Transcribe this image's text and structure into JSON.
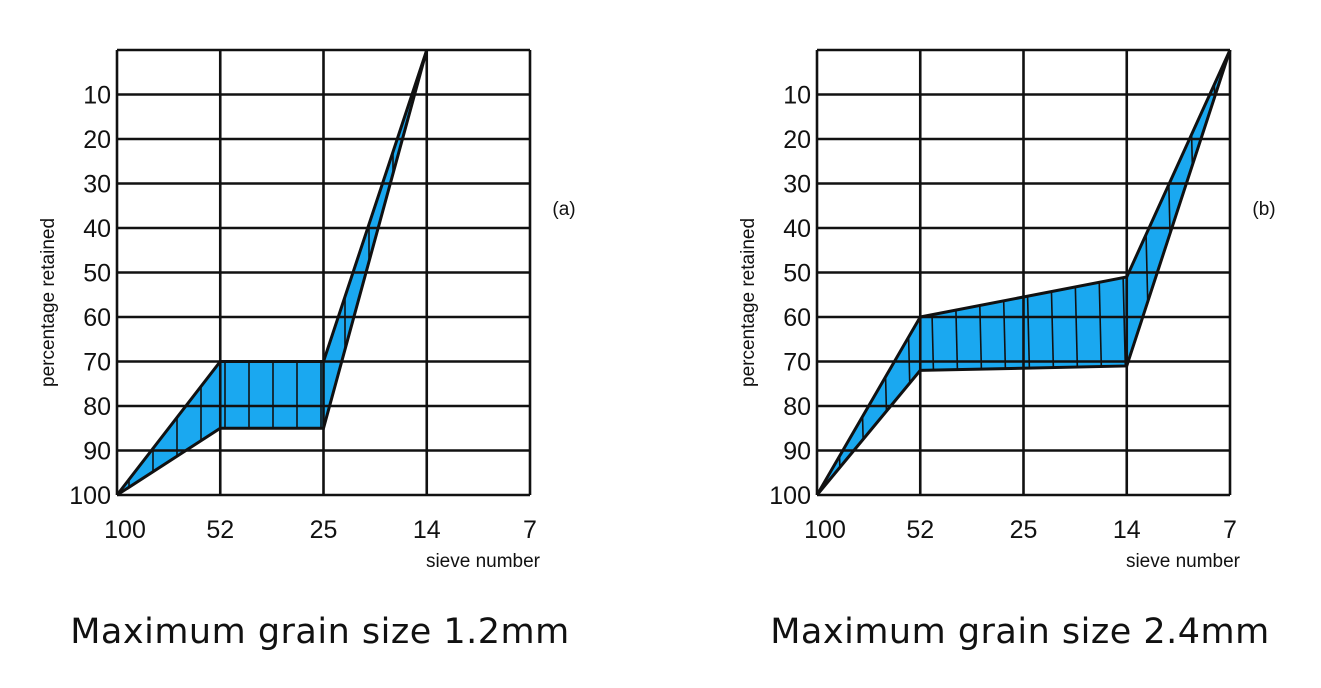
{
  "chart_data": [
    {
      "type": "area",
      "tag": "(a)",
      "ylabel": "percentage retained",
      "xlabel": "sieve number",
      "x_categories": [
        "100",
        "52",
        "25",
        "14",
        "7"
      ],
      "y_ticks": [
        "10",
        "20",
        "30",
        "40",
        "50",
        "60",
        "70",
        "80",
        "90",
        "100"
      ],
      "ylim": [
        0,
        100
      ],
      "y_inverted": true,
      "grid": true,
      "fill_color": "#1aa8f0",
      "series": [
        {
          "x": [
            "100",
            "52",
            "25",
            "14"
          ],
          "values": [
            100,
            70,
            70,
            0
          ]
        },
        {
          "x": [
            "100",
            "52",
            "25",
            "14"
          ],
          "values": [
            100,
            85,
            85,
            0
          ]
        }
      ],
      "caption": "Maximum grain size 1.2mm"
    },
    {
      "type": "area",
      "tag": "(b)",
      "ylabel": "percentage retained",
      "xlabel": "sieve number",
      "x_categories": [
        "100",
        "52",
        "25",
        "14",
        "7"
      ],
      "y_ticks": [
        "10",
        "20",
        "30",
        "40",
        "50",
        "60",
        "70",
        "80",
        "90",
        "100"
      ],
      "ylim": [
        0,
        100
      ],
      "y_inverted": true,
      "grid": true,
      "fill_color": "#1aa8f0",
      "series": [
        {
          "x": [
            "100",
            "52",
            "14",
            "7"
          ],
          "values": [
            100,
            60,
            51,
            0
          ]
        },
        {
          "x": [
            "100",
            "52",
            "14",
            "7"
          ],
          "values": [
            100,
            72,
            71,
            0
          ]
        }
      ],
      "caption": "Maximum grain size 2.4mm"
    }
  ]
}
